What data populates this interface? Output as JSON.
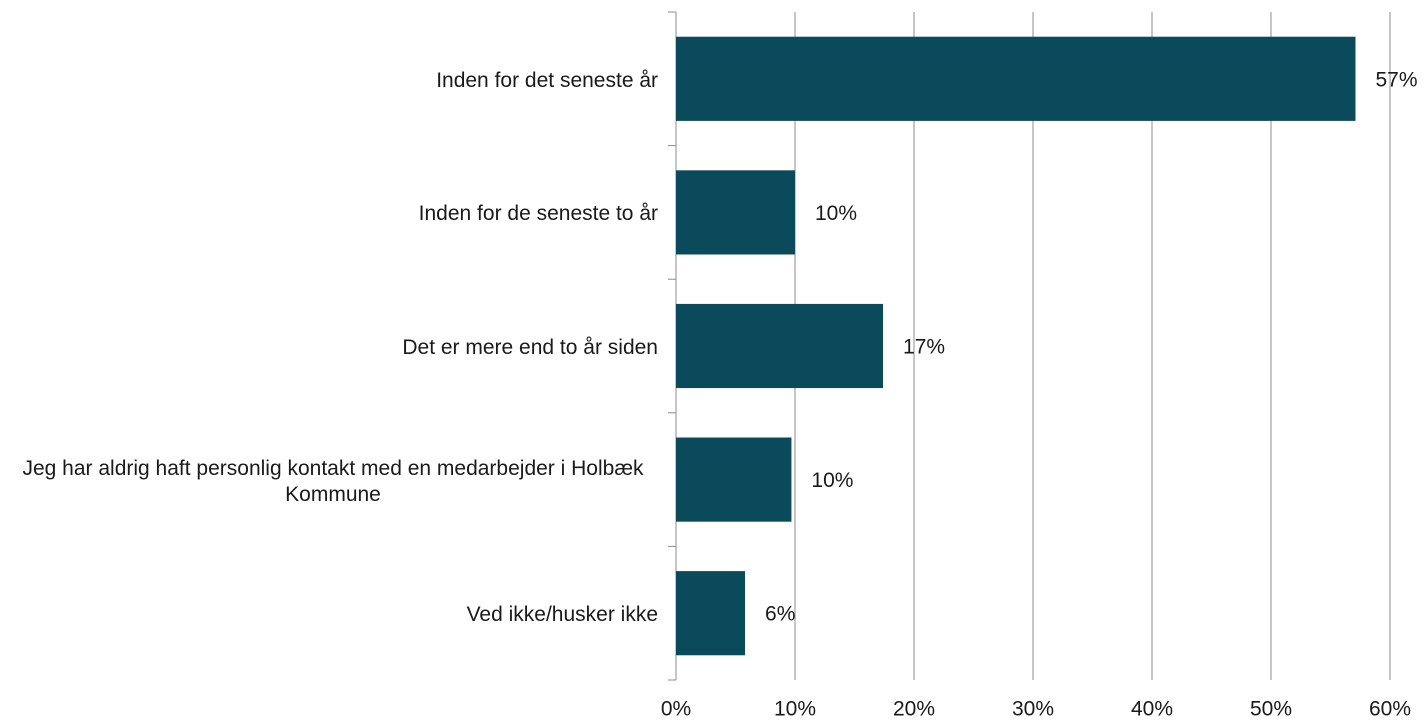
{
  "chart_data": {
    "type": "bar",
    "orientation": "horizontal",
    "categories": [
      "Inden for det seneste år",
      "Inden for de seneste to år",
      "Det er mere end to år siden",
      "Jeg har aldrig haft personlig kontakt med en medarbejder i Holbæk Kommune",
      "Ved ikke/husker ikke"
    ],
    "values": [
      57.1,
      10,
      17.4,
      9.7,
      5.8
    ],
    "value_labels": [
      "57%",
      "10%",
      "17%",
      "10%",
      "6%"
    ],
    "color": "#0b4a5a",
    "xlim": [
      0,
      60
    ],
    "xticks": [
      {
        "value": 0,
        "label": "0%"
      },
      {
        "value": 10,
        "label": "10%"
      },
      {
        "value": 20,
        "label": "20%"
      },
      {
        "value": 30,
        "label": "30%"
      },
      {
        "value": 40,
        "label": "40%"
      },
      {
        "value": 50,
        "label": "50%"
      },
      {
        "value": 60,
        "label": "60%"
      }
    ],
    "grid": true
  }
}
